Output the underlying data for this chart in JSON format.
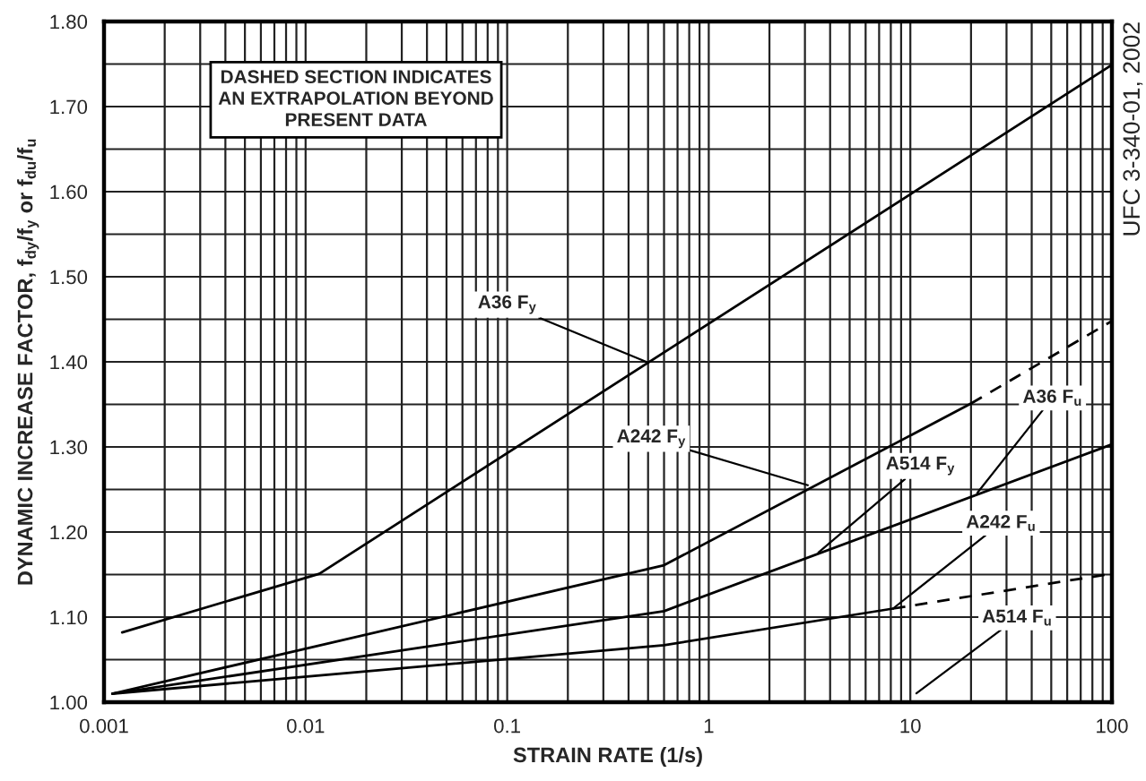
{
  "chart_data": {
    "type": "line",
    "xlabel": "STRAIN RATE (1/s)",
    "ylabel": "DYNAMIC INCREASE FACTOR, f$_{dy}$/f$_{y}$ or f$_{du}$/f$_{u}$",
    "log": "x",
    "xlim": [
      0.001,
      100
    ],
    "xticks": [
      0.001,
      {
        "value": 0.002,
        "label": null
      },
      {
        "value": 0.003,
        "label": null
      },
      {
        "value": 0.004,
        "label": null
      },
      {
        "value": 0.005,
        "label": null
      },
      {
        "value": 0.006,
        "label": null
      },
      {
        "value": 0.007,
        "label": null
      },
      {
        "value": 0.008,
        "label": null
      },
      {
        "value": 0.009,
        "label": null
      },
      0.01,
      {
        "value": 0.02,
        "label": null
      },
      {
        "value": 0.03,
        "label": null
      },
      {
        "value": 0.04,
        "label": null
      },
      {
        "value": 0.05,
        "label": null
      },
      {
        "value": 0.06,
        "label": null
      },
      {
        "value": 0.07,
        "label": null
      },
      {
        "value": 0.08,
        "label": null
      },
      {
        "value": 0.09,
        "label": null
      },
      0.1,
      {
        "value": 0.2,
        "label": null
      },
      {
        "value": 0.3,
        "label": null
      },
      {
        "value": 0.4,
        "label": null
      },
      {
        "value": 0.5,
        "label": null
      },
      {
        "value": 0.6,
        "label": null
      },
      {
        "value": 0.7,
        "label": null
      },
      {
        "value": 0.8,
        "label": null
      },
      {
        "value": 0.9,
        "label": null
      },
      1,
      {
        "value": 2,
        "label": null
      },
      {
        "value": 3,
        "label": null
      },
      {
        "value": 4,
        "label": null
      },
      {
        "value": 5,
        "label": null
      },
      {
        "value": 6,
        "label": null
      },
      {
        "value": 7,
        "label": null
      },
      {
        "value": 8,
        "label": null
      },
      {
        "value": 9,
        "label": null
      },
      10,
      {
        "value": 20,
        "label": null
      },
      {
        "value": 30,
        "label": null
      },
      {
        "value": 40,
        "label": null
      },
      {
        "value": 50,
        "label": null
      },
      {
        "value": 60,
        "label": null
      },
      {
        "value": 70,
        "label": null
      },
      {
        "value": 80,
        "label": null
      },
      {
        "value": 90,
        "label": null
      },
      100
    ],
    "ylim": [
      1.0,
      1.8
    ],
    "yticks": [
      {
        "value": 1.0,
        "label": "1.00"
      },
      {
        "value": 1.05,
        "label": null
      },
      {
        "value": 1.1,
        "label": "1.10"
      },
      {
        "value": 1.15,
        "label": null
      },
      {
        "value": 1.2,
        "label": "1.20"
      },
      {
        "value": 1.25,
        "label": null
      },
      {
        "value": 1.3,
        "label": "1.30"
      },
      {
        "value": 1.35,
        "label": null
      },
      {
        "value": 1.4,
        "label": "1.40"
      },
      {
        "value": 1.45,
        "label": null
      },
      {
        "value": 1.5,
        "label": "1.50"
      },
      {
        "value": 1.55,
        "label": null
      },
      {
        "value": 1.6,
        "label": "1.60"
      },
      {
        "value": 1.65,
        "label": null
      },
      {
        "value": 1.7,
        "label": "1.70"
      },
      {
        "value": 1.75,
        "label": null
      },
      {
        "value": 1.8,
        "label": "1.80"
      }
    ],
    "grid": true,
    "legend": false,
    "series": [
      {
        "color": "#000000",
        "line_style": "solid",
        "x": [
          0.00123,
          0.0117,
          100
        ],
        "values": [
          1.082,
          1.151,
          1.749
        ]
      },
      {
        "color": "#000000",
        "line_style": "solid",
        "x": [
          0.0011,
          0.6,
          20
        ],
        "values": [
          1.01,
          1.161,
          1.351
        ]
      },
      {
        "color": "#000000",
        "line_style": "dashed",
        "x": [
          20,
          100
        ],
        "values": [
          1.351,
          1.448
        ]
      },
      {
        "color": "#000000",
        "line_style": "solid",
        "x": [
          0.0011,
          0.6,
          100
        ],
        "values": [
          1.01,
          1.107,
          1.303
        ]
      },
      {
        "color": "#000000",
        "line_style": "solid",
        "x": [
          0.0011,
          0.6,
          8.2
        ],
        "values": [
          1.01,
          1.067,
          1.11
        ]
      },
      {
        "color": "#000000",
        "line_style": "dashed",
        "x": [
          8.2,
          100
        ],
        "values": [
          1.11,
          1.151
        ]
      }
    ],
    "annotations": [
      "DASHED SECTION INDICATES\nAN EXTRAPOLATION BEYOND\nPRESENT DATA",
      "UFC 3-340-01, 2002",
      {
        "text": "A36 F$_{y}$",
        "x": 0.49,
        "y": 1.4
      },
      {
        "text": "A242 F$_{y}$",
        "x": 3.1,
        "y": 1.255
      },
      {
        "text": "A514 F$_{y}$",
        "x": 3.5,
        "y": 1.176
      },
      {
        "text": "A36 F$_{u}$",
        "x": 21.5,
        "y": 1.246
      },
      {
        "text": "A242 F$_{u}$",
        "x": 8.2,
        "y": 1.11
      },
      "A514 F$_{u}$"
    ]
  }
}
